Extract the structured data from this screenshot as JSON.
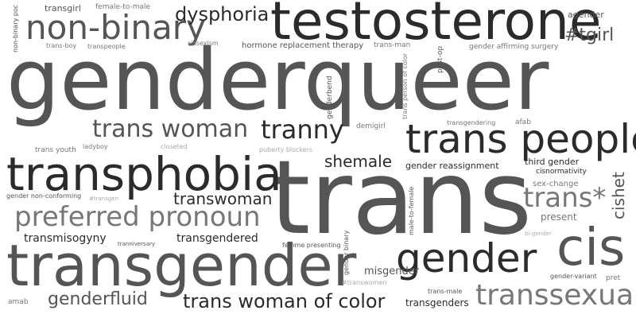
{
  "cloud": {
    "colors": {
      "background": "#ffffff",
      "dark": "#2b2b2b",
      "mid": "#555555",
      "gray": "#777777",
      "light": "#999999",
      "faint": "#aaaaaa"
    },
    "words": [
      "genderqueer",
      "trans",
      "transgender",
      "testosterone",
      "trans people",
      "transphobia",
      "gender",
      "cis",
      "non-binary",
      "trans woman",
      "tranny",
      "preferred pronoun",
      "transsexual",
      "trans woman of color",
      "trans*",
      "dysphoria",
      "shemale",
      "transwoman",
      "#tgirl",
      "cishet",
      "genderfluid",
      "transmisogyny",
      "transgendered",
      "misgender",
      "transgenders",
      "present",
      "third gender",
      "gender reassignment",
      "agender",
      "transgirl",
      "female-to-male",
      "non-binary poc",
      "trans-boy",
      "transpeople",
      "cissexism",
      "hormone replacement therapy",
      "trans-man",
      "trans person of color",
      "post-op",
      "gender affirming surgery",
      "genderbend",
      "transgendering",
      "afab",
      "demigirl",
      "trans youth",
      "ladyboy",
      "closeted",
      "puberty blockers",
      "cisnormativity",
      "sex-change",
      "gender non-conforming",
      "#transgen",
      "male-to-female",
      "gender binary",
      "tranniversary",
      "femme presenting",
      "bi-gender",
      "gender-variant",
      "pret",
      "#transwomen",
      "trans-male",
      "amab"
    ]
  }
}
